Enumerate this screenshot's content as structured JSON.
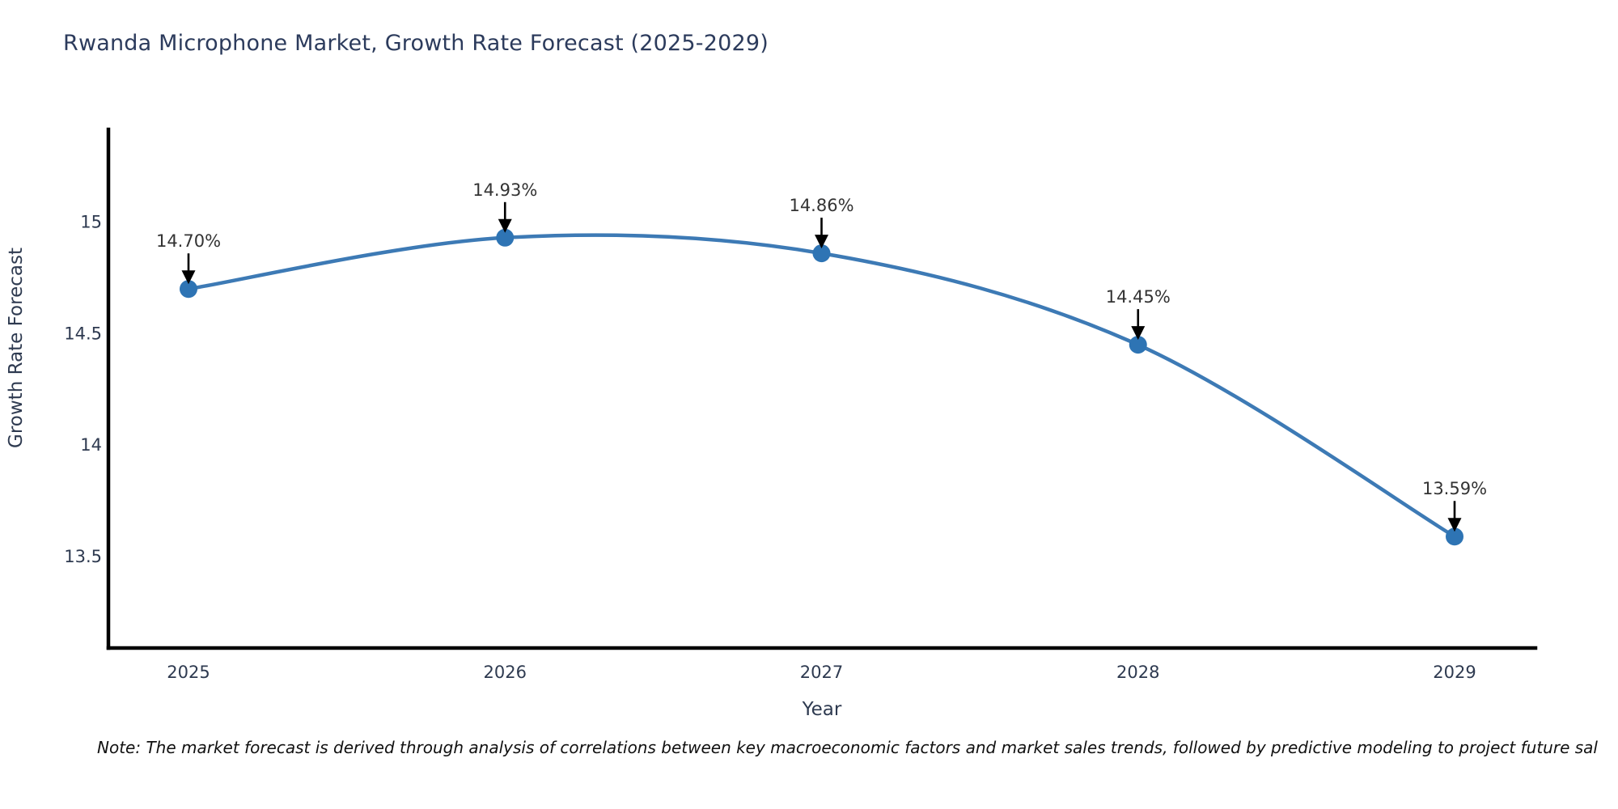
{
  "title": "Rwanda Microphone Market, Growth Rate Forecast (2025-2029)",
  "note": "Note: The market forecast is derived through analysis of correlations between key macroeconomic factors and market sales trends, followed by predictive modeling to project future sal",
  "chart_data": {
    "type": "line",
    "title": "Rwanda Microphone Market, Growth Rate Forecast (2025-2029)",
    "xlabel": "Year",
    "ylabel": "Growth Rate Forecast",
    "x": [
      2025,
      2026,
      2027,
      2028,
      2029
    ],
    "x_tick_labels": [
      "2025",
      "2026",
      "2027",
      "2028",
      "2029"
    ],
    "series": [
      {
        "name": "Growth Rate Forecast",
        "values": [
          14.7,
          14.93,
          14.86,
          14.45,
          13.59
        ],
        "point_labels": [
          "14.70%",
          "14.93%",
          "14.86%",
          "14.45%",
          "13.59%"
        ]
      }
    ],
    "y_ticks": [
      13.5,
      14,
      14.5,
      15
    ],
    "y_tick_labels": [
      "13.5",
      "14",
      "14.5",
      "15"
    ],
    "ylim": [
      13.1,
      15.4
    ],
    "grid": false,
    "legend": null,
    "annotations_style": "value label with downward arrow onto each marker",
    "colors": {
      "line": "#3d7ab5",
      "marker": "#2e74b4",
      "axis": "#000000",
      "axis_text": "#2e3a50",
      "title_text": "#2c3b5c",
      "annotation_text": "#333333",
      "arrow": "#000000",
      "background": "#ffffff"
    }
  }
}
